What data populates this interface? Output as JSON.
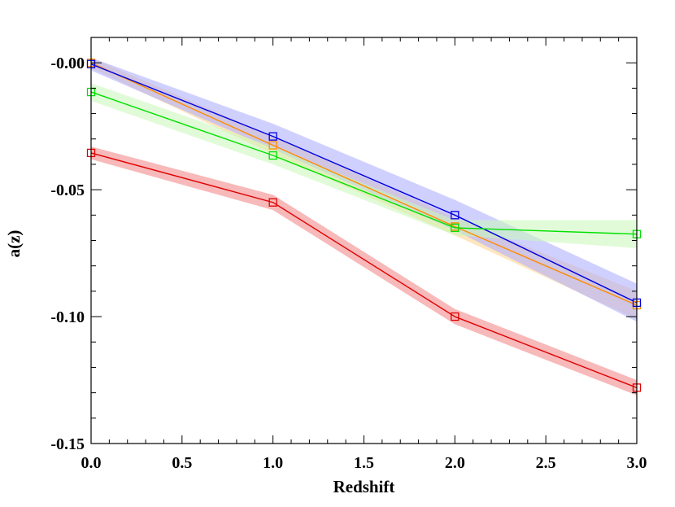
{
  "chart_data": {
    "type": "line",
    "title": "",
    "xlabel": "Redshift",
    "ylabel": "a(z)",
    "xlim": [
      0.0,
      3.0
    ],
    "ylim": [
      -0.15,
      0.01
    ],
    "xticks": [
      0.0,
      0.5,
      1.0,
      1.5,
      2.0,
      2.5,
      3.0
    ],
    "xtick_labels": [
      "0.0",
      "0.5",
      "1.0",
      "1.5",
      "2.0",
      "2.5",
      "3.0"
    ],
    "yticks": [
      0.0,
      -0.05,
      -0.1,
      -0.15
    ],
    "ytick_labels": [
      "-0.00",
      "-0.05",
      "-0.10",
      "-0.15"
    ],
    "x": [
      0,
      1,
      2,
      3
    ],
    "series": [
      {
        "name": "orange",
        "color": "#ff8c00",
        "band_color": "#ffd28a",
        "values": [
          0.0,
          -0.0325,
          -0.0645,
          -0.0955
        ],
        "lower": [
          -0.002,
          -0.036,
          -0.068,
          -0.101
        ],
        "upper": [
          0.002,
          -0.029,
          -0.061,
          -0.09
        ]
      },
      {
        "name": "blue",
        "color": "#0000e0",
        "band_color": "#aaaaff",
        "values": [
          -0.0005,
          -0.029,
          -0.06,
          -0.0945
        ],
        "lower": [
          -0.003,
          -0.034,
          -0.066,
          -0.102
        ],
        "upper": [
          0.002,
          -0.024,
          -0.054,
          -0.087
        ]
      },
      {
        "name": "green",
        "color": "#00e000",
        "band_color": "#c8f8b8",
        "values": [
          -0.0115,
          -0.0365,
          -0.065,
          -0.0675
        ],
        "lower": [
          -0.015,
          -0.04,
          -0.068,
          -0.073
        ],
        "upper": [
          -0.008,
          -0.033,
          -0.062,
          -0.062
        ]
      },
      {
        "name": "red",
        "color": "#e00000",
        "band_color": "#f08080",
        "values": [
          -0.0355,
          -0.055,
          -0.1,
          -0.128
        ],
        "lower": [
          -0.038,
          -0.058,
          -0.103,
          -0.131
        ],
        "upper": [
          -0.033,
          -0.052,
          -0.097,
          -0.125
        ]
      }
    ]
  }
}
